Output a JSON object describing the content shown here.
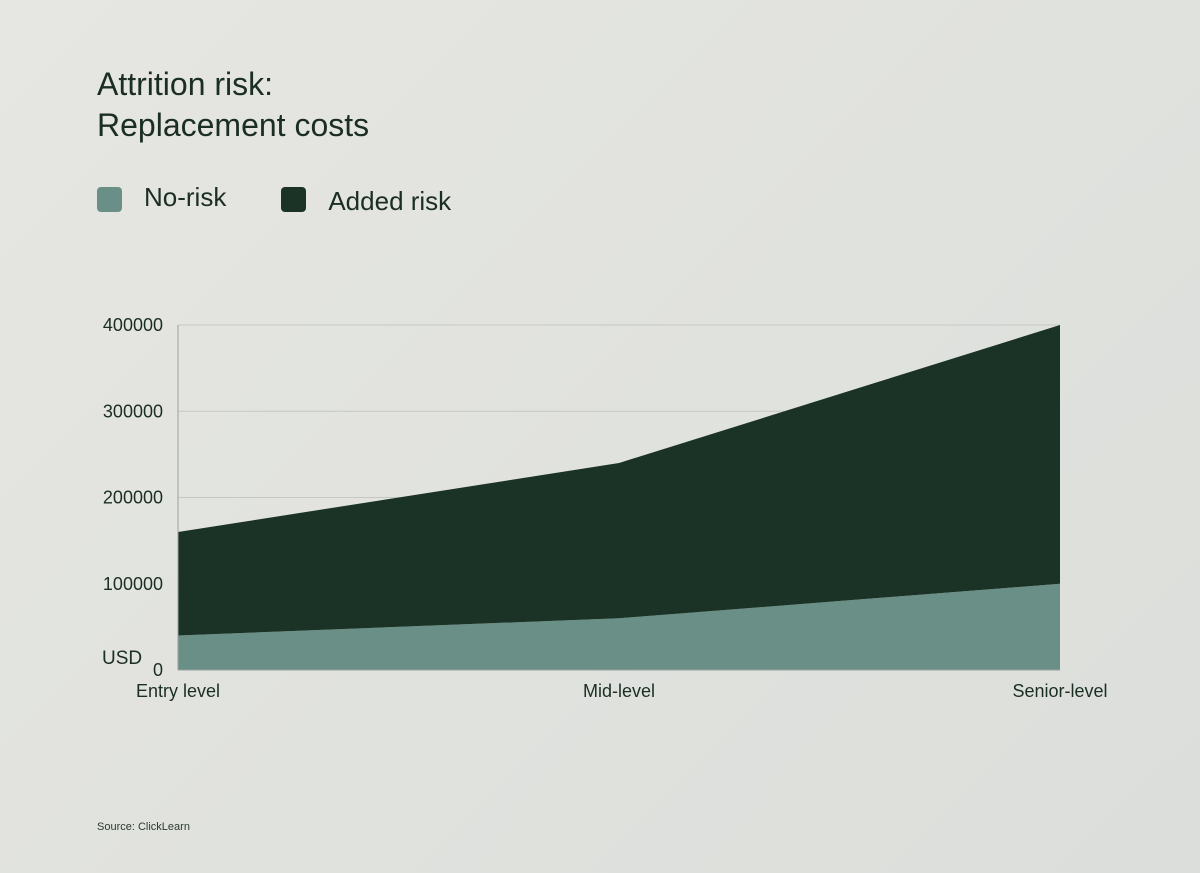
{
  "chart_data": {
    "type": "area",
    "title_lines": [
      "Attrition risk:",
      "Replacement costs"
    ],
    "categories": [
      "Entry level",
      "Mid-level",
      "Senior-level"
    ],
    "stacked": true,
    "series": [
      {
        "name": "No-risk",
        "values": [
          40000,
          60000,
          100000
        ],
        "color": "#6a8f86"
      },
      {
        "name": "Added risk",
        "values": [
          120000,
          180000,
          300000
        ],
        "color": "#1b3326"
      }
    ],
    "y_unit_label": "USD",
    "ylim": [
      0,
      400000
    ],
    "yticks": [
      0,
      100000,
      200000,
      300000,
      400000
    ],
    "grid": true,
    "legend_position": "top-left",
    "source": "Source: ClickLearn"
  }
}
